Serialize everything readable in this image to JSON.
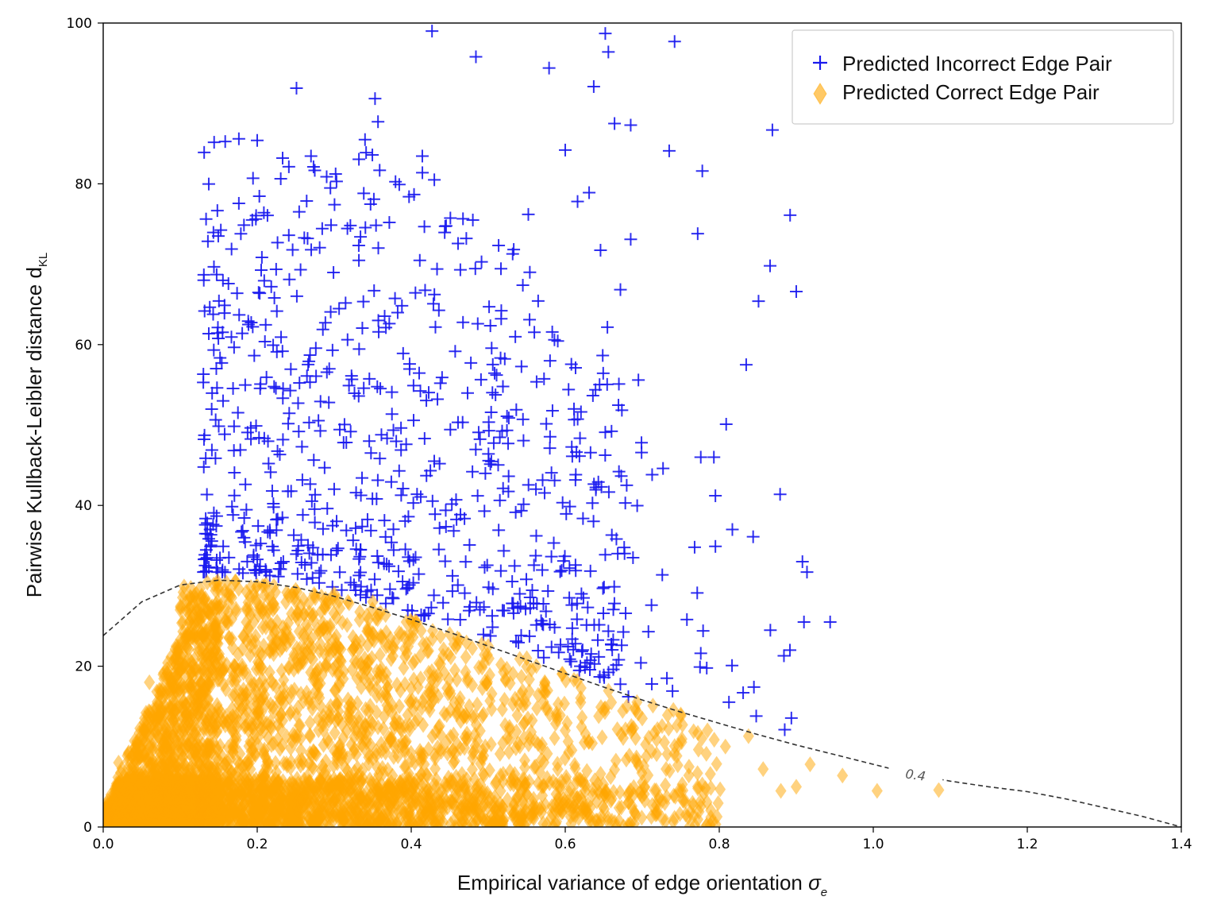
{
  "chart_data": {
    "type": "scatter",
    "x_axis": {
      "label": "Empirical variance of edge orientation ",
      "symbol": "σ",
      "subscript": "e",
      "range": [
        0.0,
        1.4
      ],
      "ticks": [
        "0.0",
        "0.2",
        "0.4",
        "0.6",
        "0.8",
        "1.0",
        "1.2",
        "1.4"
      ]
    },
    "y_axis": {
      "label": "Pairwise Kullback-Leibler distance d",
      "subscript": "KL",
      "range": [
        0,
        100
      ],
      "ticks": [
        "0",
        "20",
        "40",
        "60",
        "80",
        "100"
      ]
    },
    "grid": false,
    "legend_position": "top-right",
    "series": [
      {
        "name": "Predicted Incorrect Edge Pair",
        "marker": "plus",
        "color": "#1a1aee",
        "count_approx": 800,
        "x_range": [
          0.13,
          0.95
        ],
        "y_range": [
          12,
          99
        ],
        "sample_points": [
          [
            0.427,
            99.0
          ],
          [
            0.652,
            98.7
          ],
          [
            0.742,
            97.7
          ],
          [
            0.656,
            96.4
          ],
          [
            0.484,
            95.8
          ],
          [
            0.579,
            94.4
          ],
          [
            0.637,
            92.1
          ],
          [
            0.251,
            91.9
          ],
          [
            0.353,
            90.6
          ],
          [
            0.664,
            87.5
          ],
          [
            0.869,
            86.7
          ],
          [
            0.685,
            87.3
          ],
          [
            0.2,
            85.4
          ],
          [
            0.34,
            85.5
          ],
          [
            0.6,
            84.2
          ],
          [
            0.735,
            84.1
          ],
          [
            0.233,
            83.2
          ],
          [
            0.778,
            81.6
          ],
          [
            0.303,
            80.3
          ],
          [
            0.631,
            78.9
          ],
          [
            0.616,
            77.8
          ],
          [
            0.892,
            76.1
          ],
          [
            0.48,
            75.5
          ],
          [
            0.685,
            73.1
          ],
          [
            0.772,
            73.8
          ],
          [
            0.241,
            73.6
          ],
          [
            0.866,
            69.8
          ],
          [
            0.554,
            69.0
          ],
          [
            0.9,
            66.6
          ],
          [
            0.851,
            65.4
          ],
          [
            0.835,
            57.5
          ],
          [
            0.695,
            55.6
          ],
          [
            0.13,
            55.3
          ],
          [
            0.809,
            50.1
          ],
          [
            0.652,
            49.1
          ],
          [
            0.699,
            47.8
          ],
          [
            0.776,
            46.0
          ],
          [
            0.793,
            46.0
          ],
          [
            0.727,
            44.6
          ],
          [
            0.647,
            42.3
          ],
          [
            0.795,
            41.2
          ],
          [
            0.678,
            40.3
          ],
          [
            0.817,
            37.0
          ],
          [
            0.844,
            36.1
          ],
          [
            0.768,
            34.8
          ],
          [
            0.795,
            34.9
          ],
          [
            0.688,
            33.5
          ],
          [
            0.908,
            33.0
          ],
          [
            0.91,
            25.5
          ],
          [
            0.944,
            25.5
          ],
          [
            0.758,
            25.8
          ],
          [
            0.779,
            24.4
          ],
          [
            0.708,
            24.3
          ],
          [
            0.712,
            27.6
          ],
          [
            0.776,
            21.6
          ],
          [
            0.775,
            19.9
          ],
          [
            0.732,
            18.5
          ],
          [
            0.845,
            17.4
          ],
          [
            0.831,
            16.7
          ],
          [
            0.682,
            16.2
          ],
          [
            0.848,
            13.8
          ],
          [
            0.885,
            12.1
          ],
          [
            0.884,
            21.3
          ],
          [
            0.621,
            29.0
          ],
          [
            0.58,
            25.2
          ],
          [
            0.65,
            18.9
          ]
        ]
      },
      {
        "name": "Predicted Correct Edge Pair",
        "marker": "diamond",
        "color": "#ffa500",
        "alpha": 0.5,
        "count_approx": 6000,
        "x_range": [
          0.0,
          1.09
        ],
        "y_range": [
          0,
          30
        ],
        "sample_points": [
          [
            1.085,
            4.6
          ],
          [
            1.005,
            4.5
          ],
          [
            0.96,
            6.4
          ],
          [
            0.918,
            7.8
          ],
          [
            0.88,
            4.5
          ],
          [
            0.9,
            5.0
          ],
          [
            0.857,
            7.2
          ],
          [
            0.838,
            11.3
          ],
          [
            0.808,
            10.0
          ],
          [
            0.75,
            14.0
          ],
          [
            0.75,
            4.5
          ],
          [
            0.73,
            5.2
          ],
          [
            0.7,
            13.5
          ],
          [
            0.68,
            15.0
          ],
          [
            0.66,
            15.5
          ],
          [
            0.64,
            0.8
          ],
          [
            0.62,
            15.5
          ],
          [
            0.6,
            12.0
          ],
          [
            0.58,
            14.0
          ],
          [
            0.55,
            21.0
          ],
          [
            0.5,
            22.5
          ],
          [
            0.45,
            24.0
          ],
          [
            0.4,
            25.5
          ],
          [
            0.35,
            28.0
          ],
          [
            0.3,
            29.0
          ],
          [
            0.25,
            29.5
          ],
          [
            0.2,
            30.0
          ],
          [
            0.15,
            29.5
          ],
          [
            0.1,
            27.0
          ],
          [
            0.06,
            18.0
          ],
          [
            0.02,
            8.0
          ]
        ]
      }
    ],
    "contour": {
      "style": "dashed",
      "color": "#333333",
      "label": "0.4",
      "points": [
        [
          0.0,
          23.8
        ],
        [
          0.05,
          28.0
        ],
        [
          0.1,
          30.1
        ],
        [
          0.15,
          30.7
        ],
        [
          0.2,
          30.5
        ],
        [
          0.25,
          29.8
        ],
        [
          0.3,
          28.7
        ],
        [
          0.35,
          27.3
        ],
        [
          0.4,
          25.8
        ],
        [
          0.45,
          24.2
        ],
        [
          0.5,
          22.5
        ],
        [
          0.55,
          20.8
        ],
        [
          0.6,
          19.1
        ],
        [
          0.65,
          17.4
        ],
        [
          0.7,
          15.8
        ],
        [
          0.75,
          14.3
        ],
        [
          0.8,
          12.9
        ],
        [
          0.85,
          11.5
        ],
        [
          0.9,
          10.2
        ],
        [
          0.95,
          9.0
        ],
        [
          1.0,
          7.8
        ],
        [
          1.05,
          6.6
        ],
        [
          1.1,
          5.7
        ],
        [
          1.15,
          5.0
        ],
        [
          1.2,
          4.4
        ],
        [
          1.25,
          3.5
        ],
        [
          1.3,
          2.4
        ],
        [
          1.35,
          1.3
        ],
        [
          1.4,
          0.0
        ]
      ]
    }
  }
}
